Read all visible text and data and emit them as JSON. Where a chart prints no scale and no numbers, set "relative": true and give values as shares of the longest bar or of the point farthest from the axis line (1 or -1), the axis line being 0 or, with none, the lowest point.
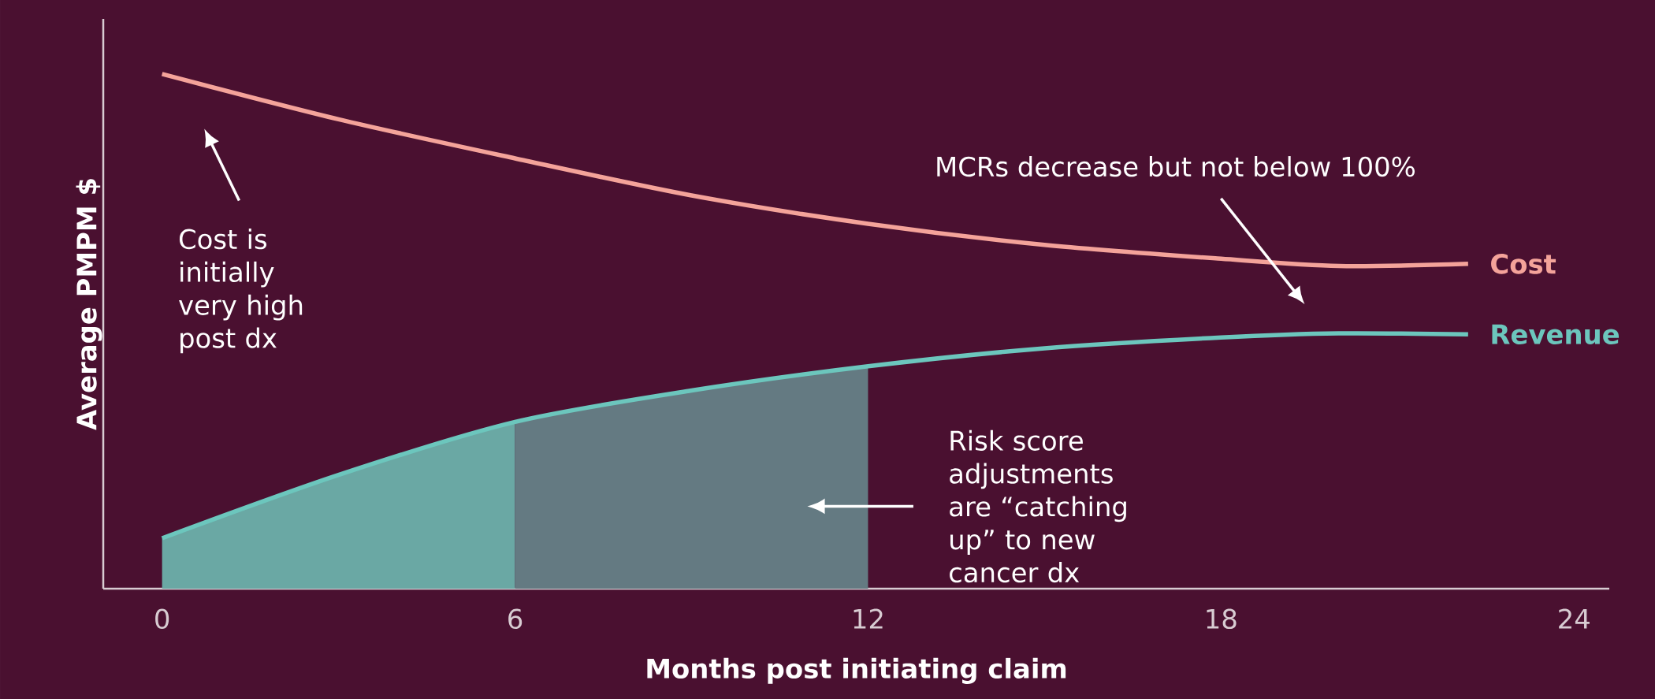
{
  "chart_data": {
    "type": "line",
    "relative": true,
    "xlabel": "Months post initiating claim",
    "ylabel": "Average PMPM $",
    "x": [
      0,
      3,
      6,
      9,
      12,
      15,
      18,
      20,
      22.2
    ],
    "series": [
      {
        "type": "area",
        "color": "#6aa8a4",
        "x": [
          0,
          3,
          6
        ],
        "values": [
          0.098,
          0.221,
          0.324
        ]
      },
      {
        "type": "area",
        "color": "#647a82",
        "x": [
          6,
          9,
          12
        ],
        "values": [
          0.324,
          0.385,
          0.432
        ]
      },
      {
        "name": "Cost",
        "color": "#f4a39a",
        "values": [
          1.0,
          0.912,
          0.836,
          0.764,
          0.709,
          0.668,
          0.641,
          0.627,
          0.631
        ]
      },
      {
        "name": "Revenue",
        "color": "#6cc6bd",
        "values": [
          0.098,
          0.221,
          0.324,
          0.385,
          0.432,
          0.467,
          0.488,
          0.496,
          0.494
        ]
      }
    ],
    "xlim": [
      -1,
      24.6
    ],
    "xticks": [
      0,
      6,
      12,
      18,
      24
    ],
    "annotations": [
      "Cost is initially very high post dx",
      "MCRs decrease but not below 100%",
      "Risk score adjustments are “catching up” to new cancer dx"
    ],
    "grid": false,
    "marker": "none",
    "line_style": "solid"
  }
}
